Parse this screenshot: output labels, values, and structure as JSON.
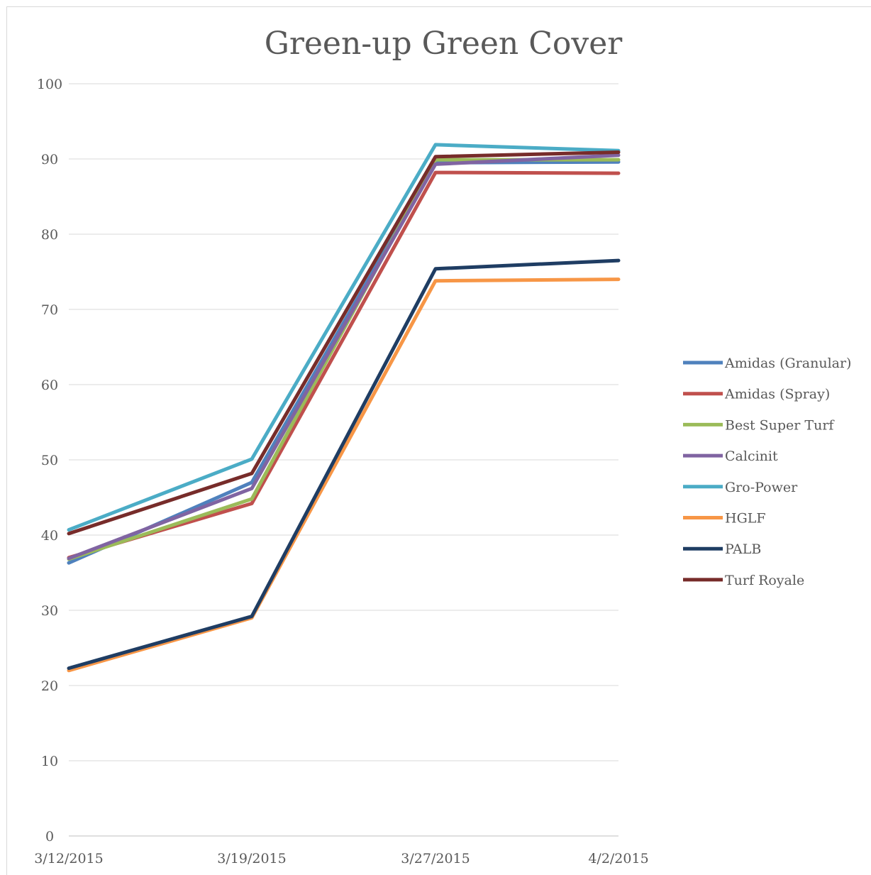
{
  "chart_data": {
    "type": "line",
    "title": "Green-up Green Cover",
    "xlabel": "",
    "ylabel": "",
    "categories": [
      "3/12/2015",
      "3/19/2015",
      "3/27/2015",
      "4/2/2015"
    ],
    "ylim": [
      0,
      100
    ],
    "yticks": [
      "0",
      "10",
      "20",
      "30",
      "40",
      "50",
      "60",
      "70",
      "80",
      "90",
      "100"
    ],
    "grid": true,
    "legend_position": "right",
    "series": [
      {
        "name": "Amidas (Granular)",
        "color": "#4f81bd",
        "values": [
          36.3,
          47.0,
          89.5,
          89.6
        ]
      },
      {
        "name": "Amidas (Spray)",
        "color": "#c0504d",
        "values": [
          37.0,
          44.2,
          88.2,
          88.1
        ]
      },
      {
        "name": "Best Super Turf",
        "color": "#9bbb59",
        "values": [
          36.8,
          44.8,
          89.9,
          89.9
        ]
      },
      {
        "name": "Calcinit",
        "color": "#8064a2",
        "values": [
          36.9,
          46.2,
          89.3,
          90.5
        ]
      },
      {
        "name": "Gro-Power",
        "color": "#4bacc6",
        "values": [
          40.7,
          50.1,
          91.9,
          91.1
        ]
      },
      {
        "name": "HGLF",
        "color": "#f79646",
        "values": [
          22.0,
          29.0,
          73.8,
          74.0
        ]
      },
      {
        "name": "PALB",
        "color": "#1f3d63",
        "values": [
          22.3,
          29.2,
          75.4,
          76.5
        ]
      },
      {
        "name": "Turf Royale",
        "color": "#772c2a",
        "values": [
          40.2,
          48.2,
          90.3,
          90.9
        ]
      }
    ]
  }
}
